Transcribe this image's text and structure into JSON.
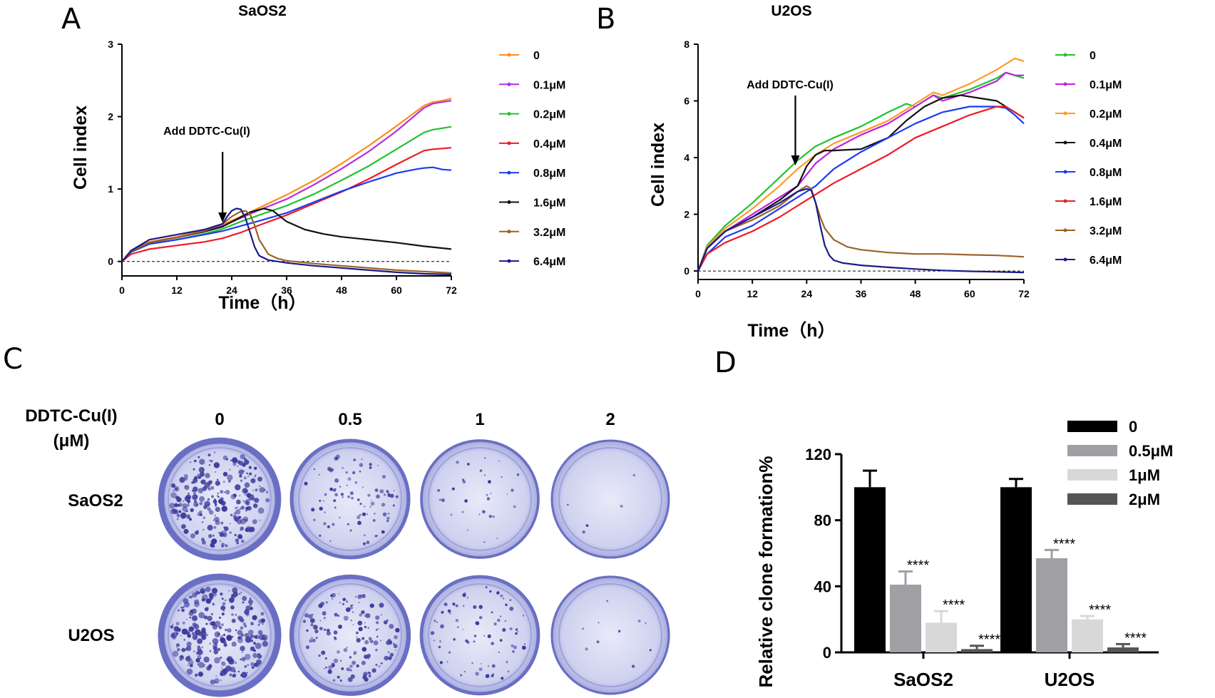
{
  "panels": {
    "a": "A",
    "b": "B",
    "c": "C",
    "d": "D"
  },
  "chart_data": [
    {
      "type": "line",
      "title": "SaOS2",
      "xlabel": "Time（h）",
      "ylabel": "Cell index",
      "xlim": [
        0,
        72
      ],
      "ylim": [
        -0.2,
        3
      ],
      "xticks": [
        "0",
        "12",
        "24",
        "36",
        "48",
        "60",
        "72"
      ],
      "yticks": [
        "0",
        "1",
        "2",
        "3"
      ],
      "annotation": {
        "text": "Add DDTC-Cu(I)",
        "x": 22
      },
      "series": [
        {
          "name": "0",
          "color": "#ff8c1a",
          "x": [
            0,
            2,
            6,
            12,
            18,
            22,
            26,
            30,
            36,
            42,
            48,
            54,
            60,
            66,
            68,
            70,
            72
          ],
          "y": [
            0,
            0.15,
            0.27,
            0.34,
            0.43,
            0.51,
            0.62,
            0.74,
            0.92,
            1.12,
            1.35,
            1.6,
            1.87,
            2.15,
            2.2,
            2.22,
            2.25
          ]
        },
        {
          "name": "0.1μM",
          "color": "#b030e0",
          "x": [
            0,
            2,
            6,
            12,
            18,
            22,
            26,
            30,
            36,
            42,
            48,
            54,
            60,
            66,
            68,
            70,
            72
          ],
          "y": [
            0,
            0.14,
            0.26,
            0.33,
            0.41,
            0.49,
            0.6,
            0.71,
            0.86,
            1.06,
            1.28,
            1.52,
            1.8,
            2.12,
            2.18,
            2.2,
            2.22
          ]
        },
        {
          "name": "0.2μM",
          "color": "#22c22e",
          "x": [
            0,
            2,
            6,
            12,
            18,
            22,
            26,
            30,
            36,
            42,
            48,
            54,
            60,
            66,
            68,
            70,
            72
          ],
          "y": [
            0,
            0.13,
            0.24,
            0.3,
            0.38,
            0.45,
            0.55,
            0.64,
            0.77,
            0.93,
            1.12,
            1.32,
            1.55,
            1.78,
            1.82,
            1.84,
            1.86
          ]
        },
        {
          "name": "0.4μM",
          "color": "#ee1c24",
          "x": [
            0,
            2,
            6,
            12,
            18,
            22,
            26,
            30,
            36,
            42,
            48,
            54,
            60,
            66,
            68,
            70,
            72
          ],
          "y": [
            0,
            0.1,
            0.17,
            0.22,
            0.27,
            0.32,
            0.4,
            0.5,
            0.64,
            0.8,
            0.96,
            1.14,
            1.34,
            1.53,
            1.55,
            1.56,
            1.57
          ]
        },
        {
          "name": "0.8μM",
          "color": "#1a3cf0",
          "x": [
            0,
            2,
            6,
            12,
            18,
            22,
            26,
            30,
            36,
            42,
            48,
            54,
            60,
            64,
            66,
            68,
            70,
            72
          ],
          "y": [
            0,
            0.13,
            0.24,
            0.3,
            0.37,
            0.42,
            0.49,
            0.56,
            0.67,
            0.82,
            0.97,
            1.1,
            1.22,
            1.27,
            1.29,
            1.3,
            1.27,
            1.26
          ]
        },
        {
          "name": "1.6μM",
          "color": "#111111",
          "x": [
            0,
            2,
            6,
            12,
            18,
            22,
            25,
            28,
            31,
            33,
            36,
            40,
            44,
            48,
            54,
            60,
            66,
            72
          ],
          "y": [
            0,
            0.14,
            0.26,
            0.33,
            0.41,
            0.48,
            0.58,
            0.68,
            0.73,
            0.7,
            0.55,
            0.44,
            0.38,
            0.34,
            0.3,
            0.26,
            0.21,
            0.17
          ]
        },
        {
          "name": "3.2μM",
          "color": "#9a6228",
          "x": [
            0,
            2,
            6,
            12,
            18,
            22,
            24,
            26,
            27,
            28,
            29,
            30,
            32,
            34,
            36,
            42,
            48,
            54,
            60,
            66,
            72
          ],
          "y": [
            0,
            0.14,
            0.26,
            0.33,
            0.42,
            0.52,
            0.62,
            0.69,
            0.7,
            0.65,
            0.5,
            0.3,
            0.1,
            0.04,
            0.01,
            -0.03,
            -0.06,
            -0.09,
            -0.12,
            -0.14,
            -0.16
          ]
        },
        {
          "name": "6.4μM",
          "color": "#1a1a8a",
          "x": [
            0,
            2,
            6,
            12,
            18,
            22,
            23,
            24,
            25,
            26,
            27,
            28,
            29,
            30,
            32,
            36,
            42,
            48,
            54,
            60,
            66,
            72
          ],
          "y": [
            0,
            0.15,
            0.3,
            0.37,
            0.44,
            0.52,
            0.62,
            0.7,
            0.73,
            0.72,
            0.6,
            0.4,
            0.2,
            0.08,
            0.02,
            -0.02,
            -0.06,
            -0.09,
            -0.12,
            -0.15,
            -0.17,
            -0.18
          ]
        }
      ]
    },
    {
      "type": "line",
      "title": "U2OS",
      "xlabel": "Time（h）",
      "ylabel": "Cell index",
      "xlim": [
        0,
        72
      ],
      "ylim": [
        -0.3,
        8
      ],
      "xticks": [
        "0",
        "12",
        "24",
        "36",
        "48",
        "60",
        "72"
      ],
      "yticks": [
        "0",
        "2",
        "4",
        "6",
        "8"
      ],
      "annotation": {
        "text": "Add DDTC-Cu(I)",
        "x": 21.5
      },
      "series": [
        {
          "name": "0",
          "color": "#22c22e",
          "x": [
            0,
            2,
            6,
            12,
            18,
            22,
            26,
            30,
            36,
            42,
            46,
            48,
            50,
            52,
            54,
            60,
            66,
            68,
            70,
            72
          ],
          "y": [
            0,
            0.9,
            1.6,
            2.4,
            3.3,
            3.9,
            4.4,
            4.7,
            5.1,
            5.6,
            5.9,
            5.8,
            6.0,
            6.2,
            6.1,
            6.4,
            6.8,
            7.0,
            6.9,
            6.8
          ]
        },
        {
          "name": "0.1μM",
          "color": "#c020e0",
          "x": [
            0,
            2,
            6,
            12,
            18,
            22,
            26,
            30,
            36,
            42,
            46,
            48,
            50,
            52,
            54,
            60,
            66,
            68,
            70,
            72
          ],
          "y": [
            0,
            0.8,
            1.4,
            2.0,
            2.6,
            3.0,
            3.8,
            4.3,
            4.8,
            5.2,
            5.6,
            5.8,
            6.0,
            6.2,
            6.0,
            6.3,
            6.7,
            7.0,
            6.9,
            6.9
          ]
        },
        {
          "name": "0.2μM",
          "color": "#ff9a2a",
          "x": [
            0,
            2,
            6,
            12,
            18,
            22,
            26,
            30,
            36,
            42,
            46,
            48,
            50,
            52,
            54,
            60,
            66,
            68,
            70,
            72
          ],
          "y": [
            0,
            0.85,
            1.5,
            2.2,
            3.0,
            3.6,
            4.1,
            4.5,
            4.9,
            5.3,
            5.7,
            5.9,
            6.1,
            6.3,
            6.2,
            6.6,
            7.1,
            7.3,
            7.5,
            7.4
          ]
        },
        {
          "name": "0.4μM",
          "color": "#111111",
          "x": [
            0,
            2,
            6,
            12,
            18,
            22,
            24,
            26,
            28,
            30,
            36,
            42,
            46,
            50,
            54,
            58,
            62,
            66,
            68,
            70,
            72
          ],
          "y": [
            0,
            0.8,
            1.4,
            1.9,
            2.5,
            3.0,
            3.7,
            4.1,
            4.25,
            4.25,
            4.3,
            4.7,
            5.3,
            5.8,
            6.1,
            6.2,
            6.1,
            6.0,
            5.8,
            5.6,
            5.4
          ]
        },
        {
          "name": "0.8μM",
          "color": "#1a3cf0",
          "x": [
            0,
            2,
            6,
            12,
            18,
            22,
            26,
            30,
            36,
            42,
            48,
            54,
            60,
            64,
            66,
            68,
            70,
            72
          ],
          "y": [
            0,
            0.6,
            1.2,
            1.6,
            2.2,
            2.6,
            3.0,
            3.6,
            4.2,
            4.7,
            5.2,
            5.6,
            5.8,
            5.8,
            5.8,
            5.75,
            5.5,
            5.2
          ]
        },
        {
          "name": "1.6μM",
          "color": "#ee1c24",
          "x": [
            0,
            2,
            6,
            12,
            18,
            22,
            26,
            30,
            36,
            42,
            48,
            54,
            60,
            64,
            66,
            68,
            70,
            72
          ],
          "y": [
            0,
            0.6,
            1.0,
            1.4,
            1.9,
            2.3,
            2.7,
            3.1,
            3.6,
            4.1,
            4.7,
            5.1,
            5.5,
            5.7,
            5.8,
            5.8,
            5.6,
            5.4
          ]
        },
        {
          "name": "3.2μM",
          "color": "#9a6228",
          "x": [
            0,
            2,
            6,
            12,
            18,
            22,
            24,
            25,
            26,
            27,
            28,
            30,
            33,
            36,
            42,
            48,
            54,
            60,
            66,
            72
          ],
          "y": [
            0,
            0.8,
            1.4,
            1.8,
            2.3,
            2.8,
            3.0,
            2.9,
            2.4,
            1.9,
            1.5,
            1.1,
            0.85,
            0.75,
            0.65,
            0.6,
            0.6,
            0.57,
            0.55,
            0.5
          ]
        },
        {
          "name": "6.4μM",
          "color": "#1a1a8a",
          "x": [
            0,
            2,
            6,
            12,
            18,
            22,
            24,
            25,
            26,
            27,
            28,
            29,
            30,
            32,
            36,
            42,
            48,
            54,
            60,
            66,
            72
          ],
          "y": [
            0,
            0.8,
            1.4,
            1.9,
            2.4,
            2.8,
            2.9,
            2.85,
            2.4,
            1.6,
            0.9,
            0.55,
            0.38,
            0.28,
            0.2,
            0.13,
            0.07,
            0.02,
            -0.01,
            -0.03,
            -0.05
          ]
        }
      ]
    },
    {
      "type": "bar",
      "ylabel": "Relative clone formation%",
      "categories": [
        "SaOS2",
        "U2OS"
      ],
      "ylim": [
        0,
        120
      ],
      "yticks": [
        "0",
        "40",
        "80",
        "120"
      ],
      "series": [
        {
          "name": "0",
          "color": "#000000",
          "values": [
            100,
            100
          ],
          "errors": [
            10,
            5
          ],
          "labels": [
            "",
            ""
          ]
        },
        {
          "name": "0.5μM",
          "color": "#a0a0a4",
          "values": [
            41,
            57
          ],
          "errors": [
            8,
            5
          ],
          "labels": [
            "****",
            "****"
          ]
        },
        {
          "name": "1μM",
          "color": "#d8d8d8",
          "values": [
            18,
            20
          ],
          "errors": [
            7,
            2
          ],
          "labels": [
            "****",
            "****"
          ]
        },
        {
          "name": "2μM",
          "color": "#555555",
          "values": [
            2,
            3
          ],
          "errors": [
            2,
            2
          ],
          "labels": [
            "****",
            "****"
          ]
        }
      ]
    }
  ],
  "panel_c": {
    "row_header": "DDTC-Cu(I)",
    "row_header_unit": "(μM)",
    "columns": [
      "0",
      "0.5",
      "1",
      "2"
    ],
    "rows": [
      "SaOS2",
      "U2OS"
    ],
    "colony_density": [
      [
        0.95,
        0.35,
        0.12,
        0.02
      ],
      [
        1.0,
        0.55,
        0.3,
        0.04
      ]
    ]
  }
}
